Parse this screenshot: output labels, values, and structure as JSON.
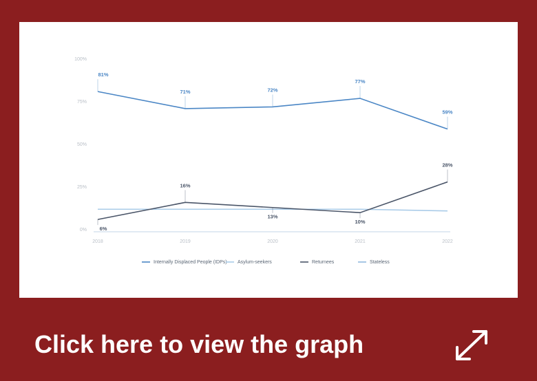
{
  "chart_data": {
    "type": "line",
    "categories": [
      "2018",
      "2019",
      "2020",
      "2021",
      "2022"
    ],
    "ylim": [
      0,
      100
    ],
    "yticks": [
      {
        "value": 0,
        "label": "0%"
      },
      {
        "value": 25,
        "label": "25%"
      },
      {
        "value": 50,
        "label": "50%"
      },
      {
        "value": 75,
        "label": "75%"
      },
      {
        "value": 100,
        "label": "100%"
      }
    ],
    "series": [
      {
        "name": "Internally Displaced People (IDPs)",
        "color": "#4a86c5",
        "values": [
          81,
          71,
          72,
          77,
          59
        ],
        "value_labels": [
          "81%",
          "71%",
          "72%",
          "77%",
          "59%"
        ]
      },
      {
        "name": "Asylum-seekers",
        "color": "#a9cbe8",
        "values": [
          12,
          12,
          12,
          12,
          11
        ]
      },
      {
        "name": "Returnees",
        "color": "#4a5568",
        "values": [
          6,
          16,
          13,
          10,
          28
        ],
        "value_labels": [
          "6%",
          "16%",
          "13%",
          "10%",
          "28%"
        ]
      },
      {
        "name": "Stateless",
        "color": "#8fb8de",
        "values": [
          null,
          null,
          null,
          null,
          null
        ]
      }
    ]
  },
  "button": {
    "text": "Click here to view the graph"
  }
}
